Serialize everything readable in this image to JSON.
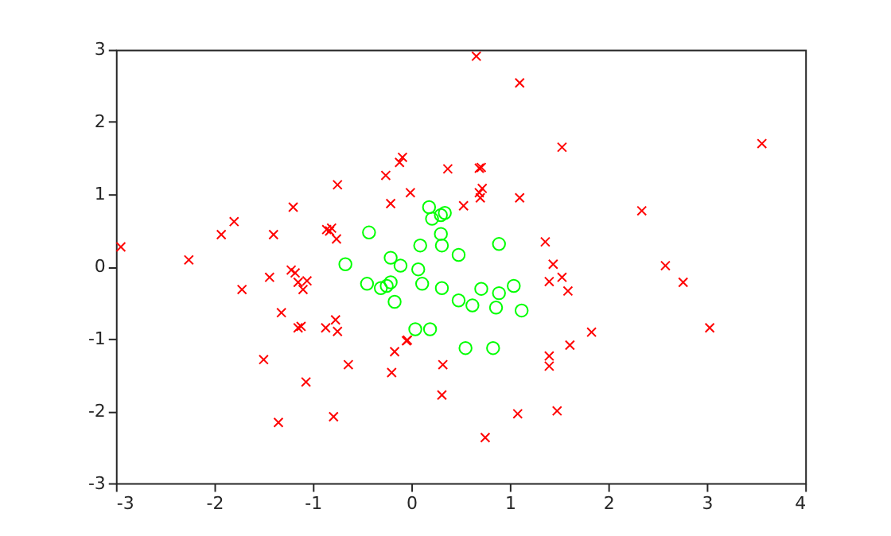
{
  "chart_data": {
    "type": "scatter",
    "xlim": [
      -3,
      4
    ],
    "ylim": [
      -3,
      3
    ],
    "xticks": [
      -3,
      -2,
      -1,
      0,
      1,
      2,
      3,
      4
    ],
    "yticks": [
      -3,
      -2,
      -1,
      0,
      1,
      2,
      3
    ],
    "grid": false,
    "series": [
      {
        "color": "#ff0000",
        "marker": "cross",
        "x": [
          -2.95,
          -2.26,
          -1.93,
          -1.8,
          -1.72,
          -1.4,
          -1.44,
          -1.2,
          -1.22,
          -1.18,
          -1.15,
          -1.1,
          -1.06,
          -1.32,
          -1.15,
          -1.12,
          -1.5,
          -1.07,
          -1.35,
          -0.86,
          -0.81,
          -0.83,
          -0.76,
          -0.75,
          -0.87,
          -0.77,
          -0.75,
          -0.79,
          -0.64,
          0.66,
          1.1,
          1.53,
          -0.09,
          -0.12,
          -0.26,
          0.37,
          0.71,
          0.69,
          -0.01,
          0.69,
          0.72,
          0.7,
          1.1,
          -0.21,
          0.53,
          1.36,
          1.44,
          1.4,
          1.53,
          1.59,
          -0.05,
          -0.04,
          -0.17,
          -0.2,
          0.32,
          0.31,
          0.75,
          1.08,
          1.48,
          1.4,
          1.4,
          1.61,
          3.56,
          2.34,
          2.58,
          2.76,
          1.83,
          3.03
        ],
        "values": [
          0.27,
          0.09,
          0.44,
          0.62,
          -0.32,
          0.44,
          -0.15,
          0.82,
          -0.05,
          -0.09,
          -0.22,
          -0.32,
          -0.2,
          -0.64,
          -0.85,
          -0.83,
          -1.29,
          -1.6,
          -2.16,
          0.51,
          0.53,
          0.49,
          0.38,
          1.13,
          -0.85,
          -0.74,
          -0.9,
          -2.08,
          -1.36,
          2.91,
          2.54,
          1.65,
          1.51,
          1.44,
          1.26,
          1.35,
          1.37,
          1.36,
          1.02,
          1.02,
          1.08,
          0.95,
          0.95,
          0.87,
          0.84,
          0.34,
          0.03,
          -0.21,
          -0.15,
          -0.34,
          -1.03,
          -1.02,
          -1.18,
          -1.47,
          -1.36,
          -1.78,
          -2.37,
          -2.04,
          -2.0,
          -1.24,
          -1.38,
          -1.09,
          1.7,
          0.77,
          0.01,
          -0.22,
          -0.91,
          -0.85
        ]
      },
      {
        "color": "#00ff00",
        "marker": "circle",
        "x": [
          0.18,
          0.34,
          0.3,
          0.21,
          -0.43,
          0.3,
          0.09,
          0.31,
          0.89,
          0.48,
          -0.21,
          -0.11,
          -0.67,
          0.07,
          -0.45,
          0.11,
          -0.21,
          -0.25,
          -0.31,
          -0.17,
          0.31,
          0.71,
          0.89,
          1.04,
          0.48,
          0.62,
          0.86,
          1.12,
          0.04,
          0.19,
          0.55,
          0.83
        ],
        "values": [
          0.82,
          0.74,
          0.71,
          0.66,
          0.47,
          0.45,
          0.29,
          0.29,
          0.31,
          0.16,
          0.12,
          0.01,
          0.03,
          -0.04,
          -0.24,
          -0.24,
          -0.22,
          -0.27,
          -0.3,
          -0.49,
          -0.3,
          -0.31,
          -0.37,
          -0.27,
          -0.47,
          -0.54,
          -0.57,
          -0.61,
          -0.87,
          -0.87,
          -1.13,
          -1.13
        ]
      }
    ]
  }
}
